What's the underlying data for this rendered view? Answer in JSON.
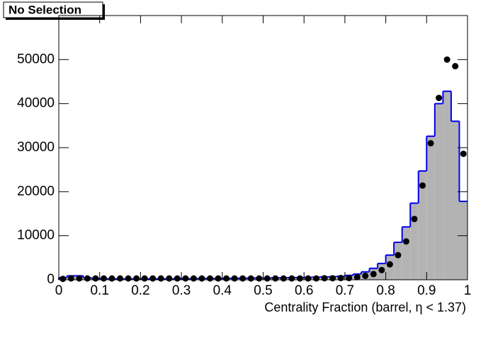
{
  "chart_data": {
    "type": "histogram",
    "title": "No Selection",
    "xlabel": "Centrality Fraction (barrel,   η < 1.37)",
    "bins": [
      0,
      0.02,
      0.04,
      0.06,
      0.08,
      0.1,
      0.12,
      0.14,
      0.16,
      0.18,
      0.2,
      0.22,
      0.24,
      0.26,
      0.28,
      0.3,
      0.32,
      0.34,
      0.36,
      0.38,
      0.4,
      0.42,
      0.44,
      0.46,
      0.48,
      0.5,
      0.52,
      0.54,
      0.56,
      0.58,
      0.6,
      0.62,
      0.64,
      0.66,
      0.68,
      0.7,
      0.72,
      0.74,
      0.76,
      0.78,
      0.8,
      0.82,
      0.84,
      0.86,
      0.88,
      0.9,
      0.92,
      0.94,
      0.96,
      0.98,
      1
    ],
    "series": [
      {
        "color": "#0000ee",
        "fill": "#b3b3b3",
        "style": "step",
        "values": [
          500,
          900,
          900,
          450,
          300,
          250,
          200,
          200,
          200,
          200,
          200,
          200,
          200,
          200,
          250,
          250,
          250,
          300,
          300,
          300,
          300,
          350,
          350,
          400,
          400,
          400,
          450,
          450,
          500,
          500,
          550,
          600,
          650,
          700,
          800,
          1000,
          1300,
          1800,
          2600,
          3700,
          5600,
          8500,
          12000,
          17400,
          24700,
          32600,
          40000,
          42800,
          36000,
          17800
        ]
      },
      {
        "color": "#000000",
        "style": "points",
        "values": [
          200,
          300,
          300,
          300,
          300,
          300,
          300,
          300,
          300,
          300,
          300,
          300,
          300,
          300,
          300,
          300,
          300,
          300,
          300,
          300,
          300,
          300,
          300,
          300,
          300,
          300,
          300,
          300,
          300,
          300,
          300,
          300,
          350,
          350,
          400,
          400,
          600,
          900,
          1300,
          2200,
          3500,
          5600,
          8700,
          13800,
          21400,
          31000,
          41300,
          50000,
          48500,
          28600
        ]
      }
    ],
    "xlim": [
      0,
      1
    ],
    "xticks": [
      0,
      0.1,
      0.2,
      0.3,
      0.4,
      0.5,
      0.6,
      0.7,
      0.8,
      0.9,
      1
    ],
    "ylim": [
      0,
      60000
    ],
    "yticks": [
      0,
      10000,
      20000,
      30000,
      40000,
      50000
    ]
  }
}
